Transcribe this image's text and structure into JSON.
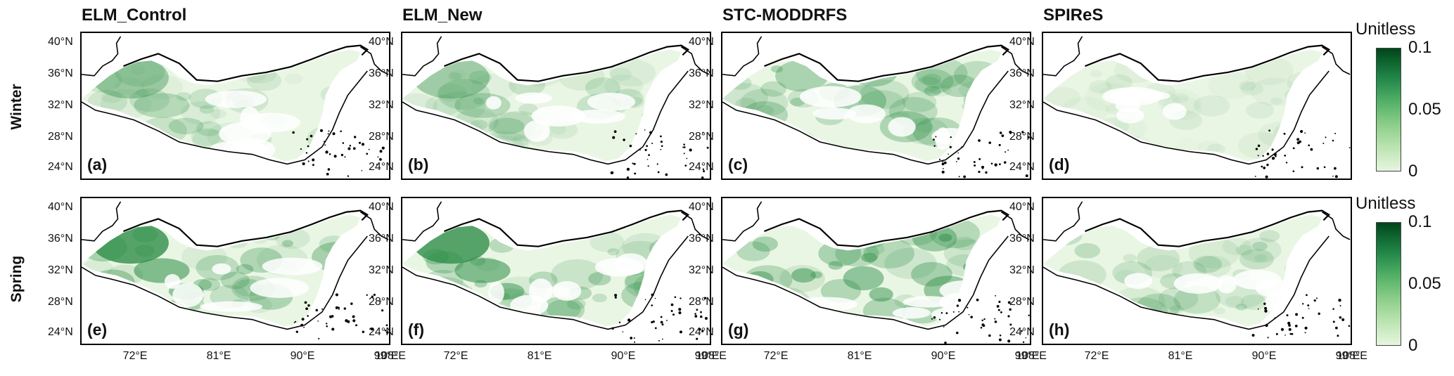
{
  "columns": [
    "ELM_Control",
    "ELM_New",
    "STC-MODDRFS",
    "SPIReS"
  ],
  "rows": [
    "Winter",
    "Spring"
  ],
  "panel_labels": [
    [
      "(a)",
      "(b)",
      "(c)",
      "(d)"
    ],
    [
      "(e)",
      "(f)",
      "(g)",
      "(h)"
    ]
  ],
  "lat_ticks": [
    "40°N",
    "36°N",
    "32°N",
    "28°N",
    "24°N"
  ],
  "lon_ticks": [
    "72°E",
    "81°E",
    "90°E",
    "99°E",
    "108°E"
  ],
  "colorbar": {
    "title": "Unitless",
    "ticks": [
      "0.1",
      "0.05",
      "0"
    ],
    "range": [
      0,
      0.1
    ],
    "colors": [
      "#00441b",
      "#0b5d2a",
      "#16733a",
      "#24884a",
      "#389a57",
      "#4ead64",
      "#67bb72",
      "#80c882",
      "#98d392",
      "#addda4",
      "#c1e6b8",
      "#d4eecb",
      "#e6f5df"
    ]
  },
  "colors": {
    "land_light": "#eaf6e4",
    "land_mid": "#b8e2ae",
    "land_dark": "#2f8f49",
    "coast": "#000000"
  }
}
